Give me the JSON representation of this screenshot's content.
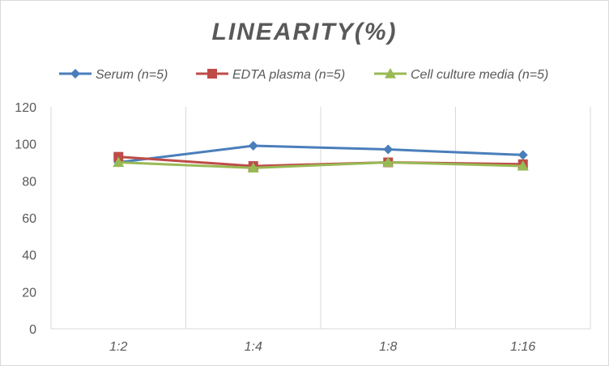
{
  "chart_data": {
    "type": "line",
    "title": "LINEARITY(%)",
    "xlabel": "",
    "ylabel": "",
    "categories": [
      "1:2",
      "1:4",
      "1:8",
      "1:16"
    ],
    "ylim": [
      0,
      120
    ],
    "yticks": [
      0,
      20,
      40,
      60,
      80,
      100,
      120
    ],
    "grid": "vertical",
    "legend": "top",
    "series": [
      {
        "name": "Serum (n=5)",
        "values": [
          90,
          99,
          97,
          94
        ],
        "color": "#4a7ebb",
        "marker": "diamond"
      },
      {
        "name": "EDTA plasma (n=5)",
        "values": [
          93,
          88,
          90,
          89
        ],
        "color": "#be4b48",
        "marker": "square"
      },
      {
        "name": "Cell culture media (n=5)",
        "values": [
          90,
          87,
          90,
          88
        ],
        "color": "#98b954",
        "marker": "triangle"
      }
    ]
  }
}
